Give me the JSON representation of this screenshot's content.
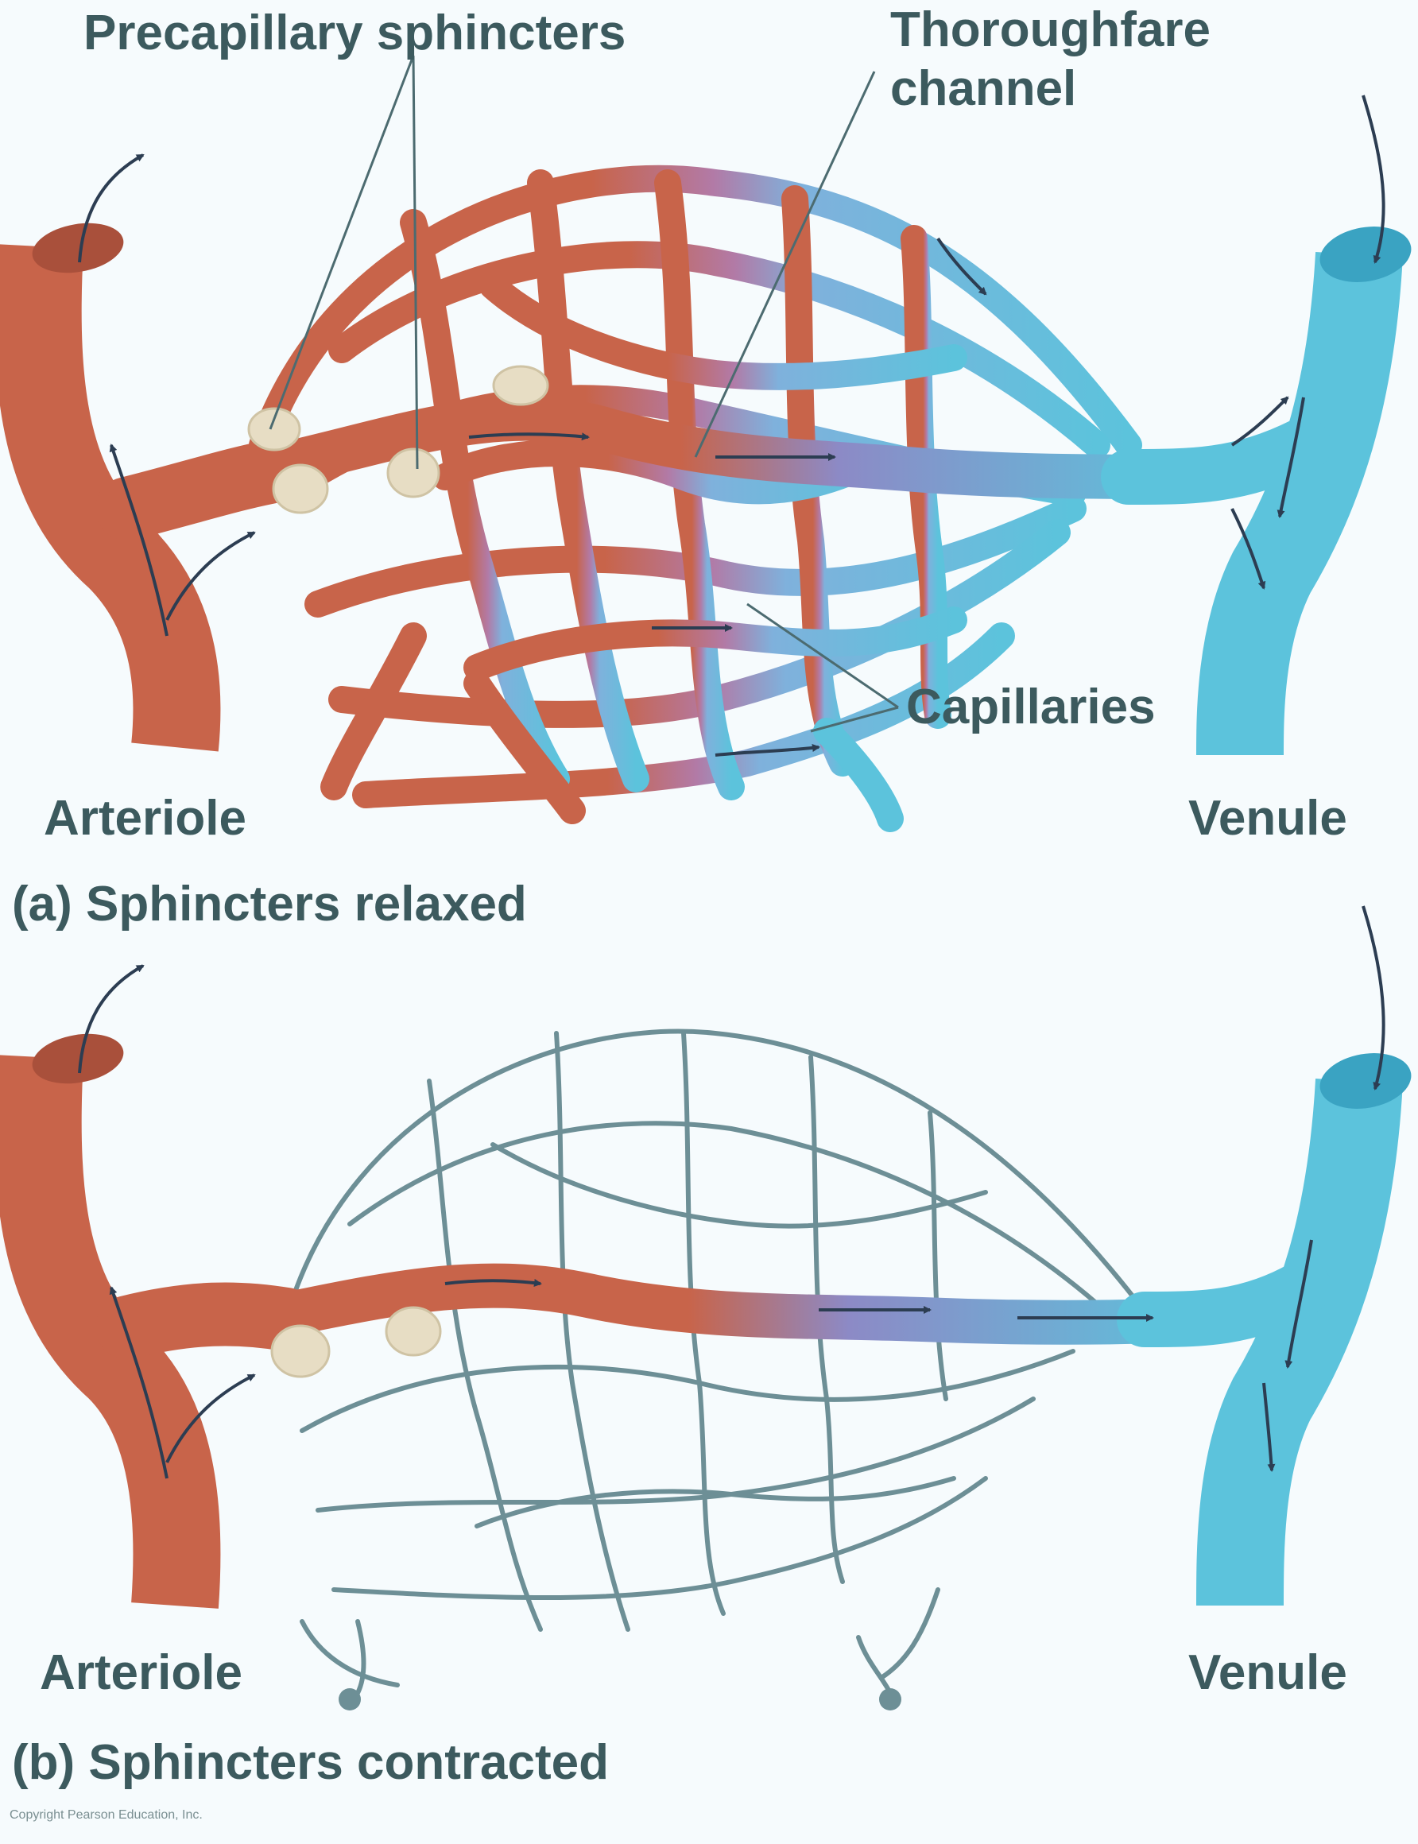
{
  "panel_a": {
    "caption": "(a) Sphincters relaxed",
    "labels": {
      "precapillary": "Precapillary sphincters",
      "thoroughfare_line1": "Thoroughfare",
      "thoroughfare_line2": "channel",
      "capillaries": "Capillaries",
      "arteriole": "Arteriole",
      "venule": "Venule"
    }
  },
  "panel_b": {
    "caption": "(b) Sphincters contracted",
    "labels": {
      "arteriole": "Arteriole",
      "venule": "Venule"
    }
  },
  "credit": "Copyright Pearson Education, Inc.",
  "colors": {
    "artery": "#c8644a",
    "artery_dark": "#a9503b",
    "vein": "#5cc3dc",
    "vein_dark": "#3aa3c2",
    "sphincter": "#e7ddc4",
    "label": "#3c5a5e",
    "outline": "#6d8f96"
  }
}
